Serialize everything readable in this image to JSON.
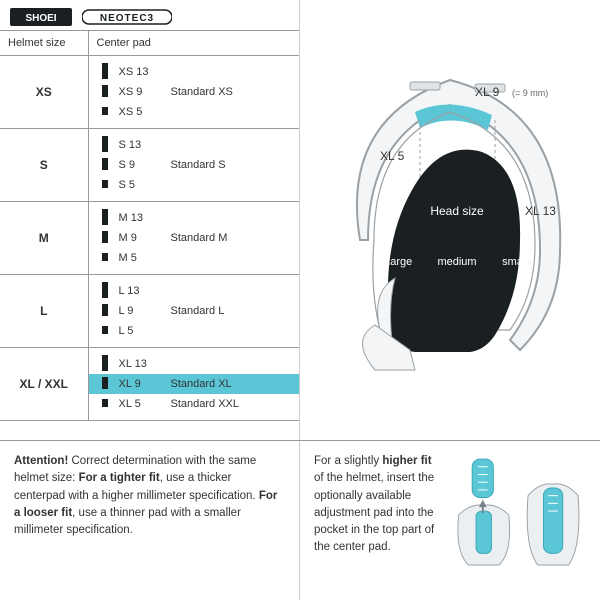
{
  "brand": {
    "logo1": "SHOEI",
    "logo2": "NEOTEC3"
  },
  "table": {
    "col1": "Helmet size",
    "col2": "Center pad",
    "rows": [
      {
        "size": "XS",
        "pads": [
          {
            "h": 13,
            "label": "XS 13",
            "std": ""
          },
          {
            "h": 9,
            "label": "XS 9",
            "std": "Standard XS"
          },
          {
            "h": 5,
            "label": "XS 5",
            "std": ""
          }
        ]
      },
      {
        "size": "S",
        "pads": [
          {
            "h": 13,
            "label": "S 13",
            "std": ""
          },
          {
            "h": 9,
            "label": "S 9",
            "std": "Standard S"
          },
          {
            "h": 5,
            "label": "S 5",
            "std": ""
          }
        ]
      },
      {
        "size": "M",
        "pads": [
          {
            "h": 13,
            "label": "M 13",
            "std": ""
          },
          {
            "h": 9,
            "label": "M 9",
            "std": "Standard M"
          },
          {
            "h": 5,
            "label": "M 5",
            "std": ""
          }
        ]
      },
      {
        "size": "L",
        "pads": [
          {
            "h": 13,
            "label": "L 13",
            "std": ""
          },
          {
            "h": 9,
            "label": "L 9",
            "std": "Standard L"
          },
          {
            "h": 5,
            "label": "L 5",
            "std": ""
          }
        ]
      },
      {
        "size": "XL / XXL",
        "pads": [
          {
            "h": 13,
            "label": "XL 13",
            "std": ""
          },
          {
            "h": 9,
            "label": "XL 9",
            "std": "Standard XL",
            "hl": true
          },
          {
            "h": 5,
            "label": "XL 5",
            "std": "Standard XXL"
          }
        ]
      }
    ]
  },
  "helmet": {
    "labels": {
      "top": "XL 9",
      "topnote": "(= 9 mm)",
      "left": "XL 5",
      "right": "XL 13",
      "head": "Head size",
      "l": "large",
      "m": "medium",
      "s": "small"
    },
    "colors": {
      "accent": "#5bc7d6",
      "outline": "#9aa1a6",
      "head": "#1a1f22"
    }
  },
  "attention": {
    "lead": "Attention!",
    "t1": " Correct determination with the same helmet size: ",
    "b1": "For a tighter fit",
    "t2": ", use a thicker centerpad with a higher millimeter specification. ",
    "b2": "For a looser fit",
    "t3": ", use a thinner pad with a smaller millimeter specification."
  },
  "fitnote": {
    "t1": "For a slightly ",
    "b1": "higher fit",
    "t2": " of the helmet, insert the optionally available adjustment pad into the pocket in the top part of the center pad."
  }
}
